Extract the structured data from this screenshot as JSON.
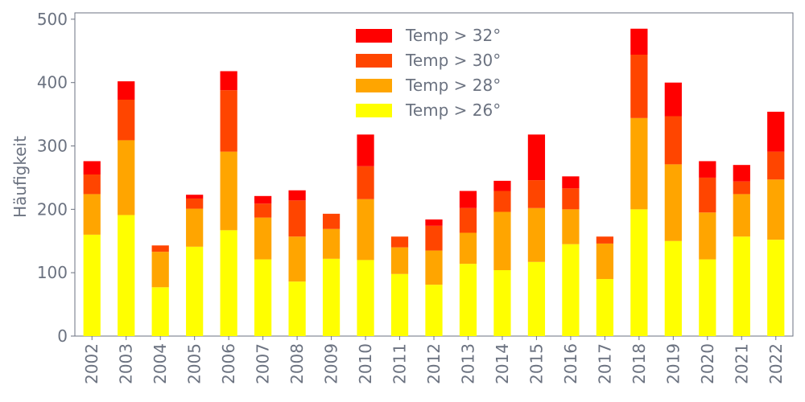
{
  "chart_data": {
    "type": "bar",
    "stacked": true,
    "ylabel": "Häufigkeit",
    "ylim": [
      0,
      510
    ],
    "yticks": [
      0,
      100,
      200,
      300,
      400,
      500
    ],
    "grid": false,
    "legend_position": "top-center",
    "categories": [
      "2002",
      "2003",
      "2004",
      "2005",
      "2006",
      "2007",
      "2008",
      "2009",
      "2010",
      "2011",
      "2012",
      "2013",
      "2014",
      "2015",
      "2016",
      "2017",
      "2018",
      "2019",
      "2020",
      "2021",
      "2022"
    ],
    "series": [
      {
        "name": "Temp > 26°",
        "color": "#ffff00",
        "values": [
          160,
          191,
          77,
          141,
          167,
          121,
          86,
          122,
          120,
          98,
          81,
          114,
          104,
          117,
          145,
          90,
          200,
          150,
          121,
          157,
          152
        ]
      },
      {
        "name": "Temp > 28°",
        "color": "#ffa500",
        "values": [
          64,
          118,
          56,
          60,
          124,
          66,
          71,
          47,
          96,
          42,
          54,
          49,
          92,
          85,
          55,
          56,
          144,
          121,
          74,
          67,
          95
        ]
      },
      {
        "name": "Temp > 30°",
        "color": "#ff4500",
        "values": [
          31,
          64,
          10,
          16,
          97,
          22,
          57,
          24,
          52,
          17,
          39,
          39,
          33,
          44,
          33,
          11,
          100,
          76,
          55,
          20,
          44
        ]
      },
      {
        "name": "Temp > 32°",
        "color": "#ff0000",
        "values": [
          21,
          29,
          0,
          6,
          30,
          12,
          16,
          0,
          50,
          0,
          10,
          27,
          16,
          72,
          19,
          0,
          41,
          53,
          26,
          26,
          63
        ]
      }
    ]
  }
}
